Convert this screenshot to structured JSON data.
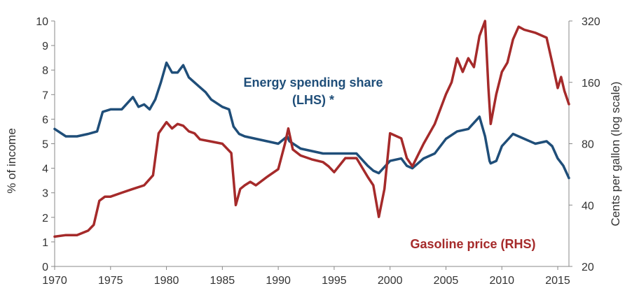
{
  "chart_data": {
    "type": "line",
    "title": "",
    "xlabel": "",
    "ylabel": "% of income",
    "y2label": "Cents per gallon (log scale)",
    "xlim": [
      1970,
      2016
    ],
    "ylim": [
      0,
      10
    ],
    "y2lim": [
      20,
      320
    ],
    "y2scale": "log",
    "grid": false,
    "legend": "none",
    "x_ticks": [
      "1970",
      "1975",
      "1980",
      "1985",
      "1990",
      "1995",
      "2000",
      "2005",
      "2010",
      "2015"
    ],
    "y_ticks": [
      "0",
      "1",
      "2",
      "3",
      "4",
      "5",
      "6",
      "7",
      "8",
      "9",
      "10"
    ],
    "y2_ticks": [
      "20",
      "40",
      "80",
      "160",
      "320"
    ],
    "annotations": {
      "energy_line1": "Energy spending share",
      "energy_line2": "(LHS) *",
      "gasoline": "Gasoline price (RHS)"
    },
    "colors": {
      "energy": "#1f4e79",
      "gasoline": "#a52a2a",
      "axis": "#888888"
    },
    "series": [
      {
        "axis": "left",
        "color": "#1f4e79",
        "x": [
          1970,
          1971,
          1972,
          1973,
          1973.8,
          1974.3,
          1975,
          1976,
          1977,
          1977.5,
          1978,
          1978.5,
          1979,
          1979.5,
          1980,
          1980.5,
          1981,
          1981.5,
          1982,
          1982.5,
          1983,
          1983.5,
          1984,
          1985,
          1985.6,
          1986,
          1986.5,
          1987,
          1988,
          1989,
          1990,
          1990.8,
          1991,
          1992,
          1993,
          1994,
          1995,
          1996,
          1997,
          1998,
          1998.5,
          1999,
          2000,
          2001,
          2001.5,
          2002,
          2003,
          2004,
          2005,
          2006,
          2007,
          2008,
          2008.5,
          2008.9,
          2009,
          2009.5,
          2010,
          2011,
          2012,
          2013,
          2014,
          2014.5,
          2015,
          2015.5,
          2016
        ],
        "y": [
          5.6,
          5.3,
          5.3,
          5.4,
          5.5,
          6.3,
          6.4,
          6.4,
          6.9,
          6.5,
          6.6,
          6.4,
          6.8,
          7.5,
          8.3,
          7.9,
          7.9,
          8.2,
          7.7,
          7.5,
          7.3,
          7.1,
          6.8,
          6.5,
          6.4,
          5.7,
          5.4,
          5.3,
          5.2,
          5.1,
          5.0,
          5.3,
          5.1,
          4.8,
          4.7,
          4.6,
          4.6,
          4.6,
          4.6,
          4.1,
          3.9,
          3.8,
          4.3,
          4.4,
          4.1,
          4.0,
          4.4,
          4.6,
          5.2,
          5.5,
          5.6,
          6.1,
          5.3,
          4.3,
          4.2,
          4.3,
          4.9,
          5.4,
          5.2,
          5.0,
          5.1,
          4.9,
          4.4,
          4.1,
          3.6
        ]
      },
      {
        "axis": "right",
        "color": "#a52a2a",
        "x": [
          1970,
          1971,
          1972,
          1973,
          1973.5,
          1974,
          1974.5,
          1975,
          1976,
          1977,
          1978,
          1978.8,
          1979.3,
          1979.6,
          1980,
          1980.5,
          1981,
          1981.5,
          1982,
          1982.5,
          1983,
          1984,
          1985,
          1985.8,
          1986.2,
          1986.6,
          1987,
          1987.5,
          1988,
          1989,
          1990,
          1990.6,
          1990.9,
          1991.3,
          1992,
          1993,
          1994,
          1994.5,
          1995,
          1996,
          1997,
          1998,
          1998.5,
          1999,
          1999.5,
          2000,
          2001,
          2001.5,
          2002,
          2003,
          2004,
          2005,
          2005.5,
          2006,
          2006.5,
          2007,
          2007.5,
          2008,
          2008.5,
          2008.8,
          2009,
          2009.5,
          2010,
          2010.5,
          2011,
          2011.5,
          2012,
          2013,
          2014,
          2014.5,
          2015,
          2015.3,
          2015.6,
          2016
        ],
        "y": [
          28,
          28.5,
          28.5,
          30,
          32,
          42,
          44,
          44,
          46,
          48,
          50,
          56,
          90,
          95,
          102,
          95,
          100,
          98,
          92,
          90,
          84,
          82,
          80,
          72,
          40,
          48,
          50,
          52,
          50,
          55,
          60,
          80,
          95,
          75,
          70,
          67,
          65,
          62,
          58,
          68,
          68,
          55,
          50,
          35,
          48,
          90,
          85,
          68,
          62,
          80,
          100,
          140,
          160,
          210,
          180,
          210,
          190,
          270,
          320,
          150,
          100,
          140,
          180,
          200,
          260,
          300,
          290,
          280,
          265,
          200,
          150,
          170,
          145,
          125
        ]
      }
    ]
  }
}
